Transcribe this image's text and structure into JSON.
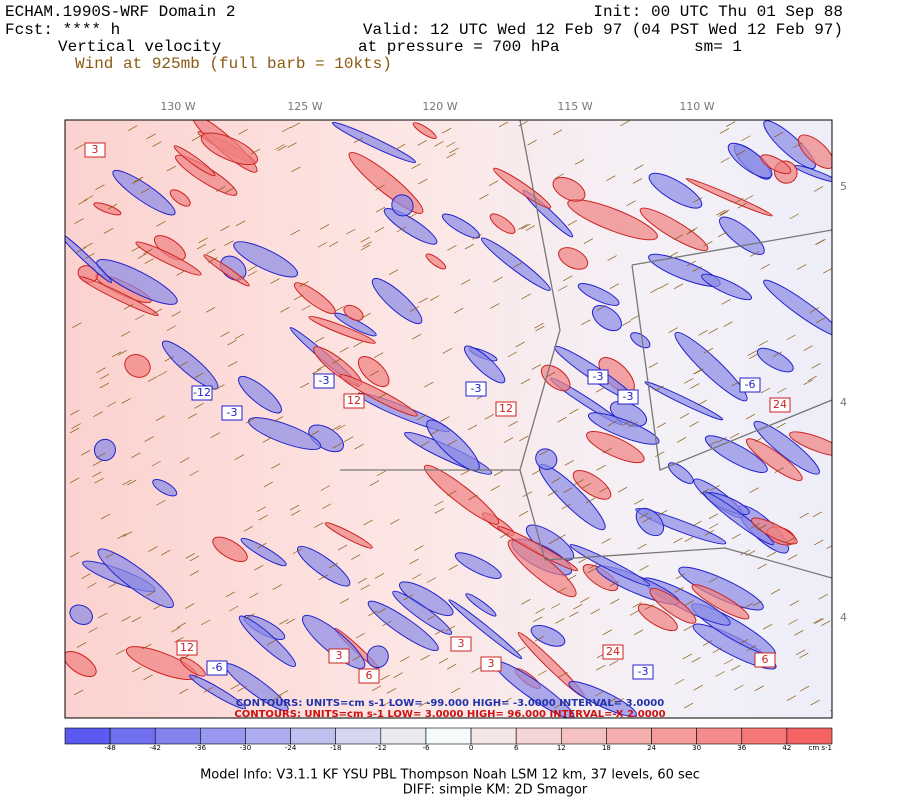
{
  "header": {
    "title": "ECHAM.1990S-WRF Domain 2",
    "init": "Init: 00 UTC Thu 01 Sep 88",
    "fcst": "Fcst: **** h",
    "valid": "Valid: 12 UTC Wed 12 Feb 97 (04 PST Wed 12 Feb 97)",
    "field": "Vertical velocity",
    "level": "at pressure =  700 hPa",
    "smooth": "sm= 1",
    "wind": "Wind at 925mb (full barb = 10kts)"
  },
  "map": {
    "longitudes": [
      "130 W",
      "125 W",
      "120 W",
      "115 W",
      "110 W"
    ],
    "latitudes": [
      "5",
      "4",
      "4"
    ],
    "contour_labels": [
      "3",
      "-3",
      "6",
      "12",
      "-3",
      "24",
      "-6",
      "12",
      "3",
      "-3",
      "6",
      "-12",
      "3",
      "-3",
      "24",
      "-6",
      "12",
      "-3",
      "3",
      "-3"
    ]
  },
  "contour_info": {
    "negative": "CONTOURS:  UNITS=cm s-1  LOW= -99.000   HIGH= -3.0000   INTERVAL= 3.0000",
    "positive": "CONTOURS:  UNITS=cm s-1  LOW=  3.0000      HIGH=  96.000     INTERVAL=-X  2.0000"
  },
  "colorbar": {
    "ticks": [
      -48,
      -42,
      -36,
      -30,
      -24,
      -18,
      -12,
      -6,
      0,
      6,
      12,
      18,
      24,
      30,
      36,
      42
    ],
    "unit": "cm s-1"
  },
  "footer": {
    "model": "Model Info: V3.1.1     KF       YSU PBL   Thompson     Noah LSM   12 km,     37 levels,     60 sec",
    "diff": "DIFF: simple KM: 2D Smagor"
  }
}
